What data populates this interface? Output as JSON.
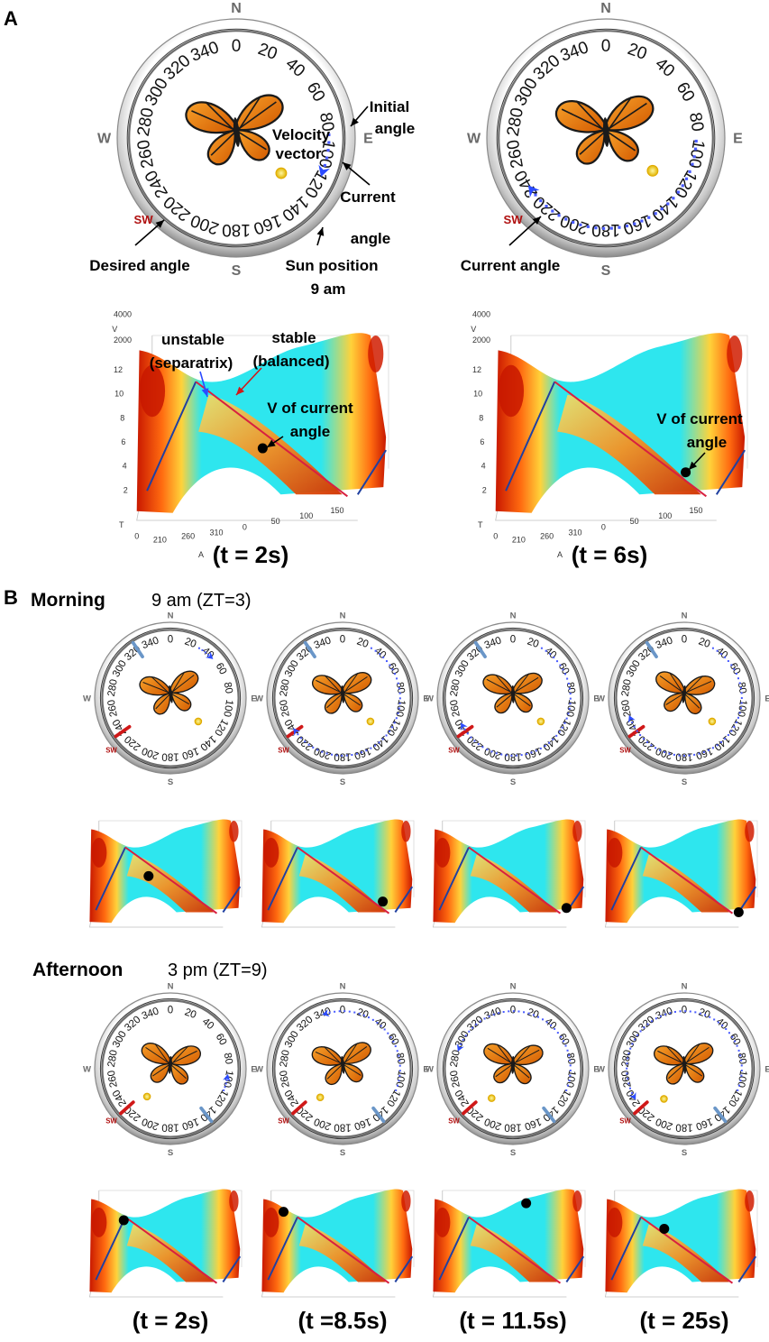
{
  "panel_a": {
    "label": "A",
    "compass_cardinals": [
      "N",
      "E",
      "S",
      "W",
      "SW"
    ],
    "compass_ticks": [
      "0",
      "20",
      "40",
      "60",
      "80",
      "100",
      "120",
      "140",
      "160",
      "180",
      "200",
      "220",
      "240",
      "260",
      "280",
      "300",
      "320",
      "340"
    ],
    "left_callouts": {
      "initial_angle": [
        "Initial",
        "angle"
      ],
      "velocity_vector": [
        "Velocity",
        "vector"
      ],
      "current_angle": [
        "Current",
        "angle"
      ],
      "desired_angle": "Desired angle",
      "sun_position": [
        "Sun position",
        "9 am"
      ]
    },
    "right_callouts": {
      "current_angle": "Current angle"
    },
    "surface_labels": {
      "unstable": [
        "unstable",
        "(separatrix)"
      ],
      "stable": [
        "stable",
        "(balanced)"
      ],
      "v_current": [
        "V of current",
        "angle"
      ],
      "v_current_right": [
        "V of current",
        "angle"
      ]
    },
    "axis_v_ticks": [
      "4000",
      "2000"
    ],
    "axis_t_ticks": [
      "12",
      "10",
      "8",
      "6",
      "4",
      "2"
    ],
    "axis_a_ticks": [
      "0",
      "210",
      "260",
      "310",
      "0",
      "50",
      "100",
      "150"
    ],
    "axis_names": {
      "v": "V",
      "t": "T",
      "a": "A"
    },
    "time_labels": [
      "(t = 2s)",
      "(t = 6s)"
    ]
  },
  "panel_b": {
    "label": "B",
    "morning": {
      "name": "Morning",
      "time": "9 am (ZT=3)"
    },
    "afternoon": {
      "name": "Afternoon",
      "time": "3 pm (ZT=9)"
    },
    "time_labels": [
      "(t = 2s)",
      "(t =8.5s)",
      "(t = 11.5s)",
      "(t = 25s)"
    ]
  },
  "colors": {
    "arrow_blue": "#2b4bff",
    "desired_red": "#d01818",
    "sun_yellow": "#d8b400",
    "surface_cyan": "#2ee6ee",
    "stable_line": "#d82040",
    "separatrix_line": "#2040a0"
  }
}
